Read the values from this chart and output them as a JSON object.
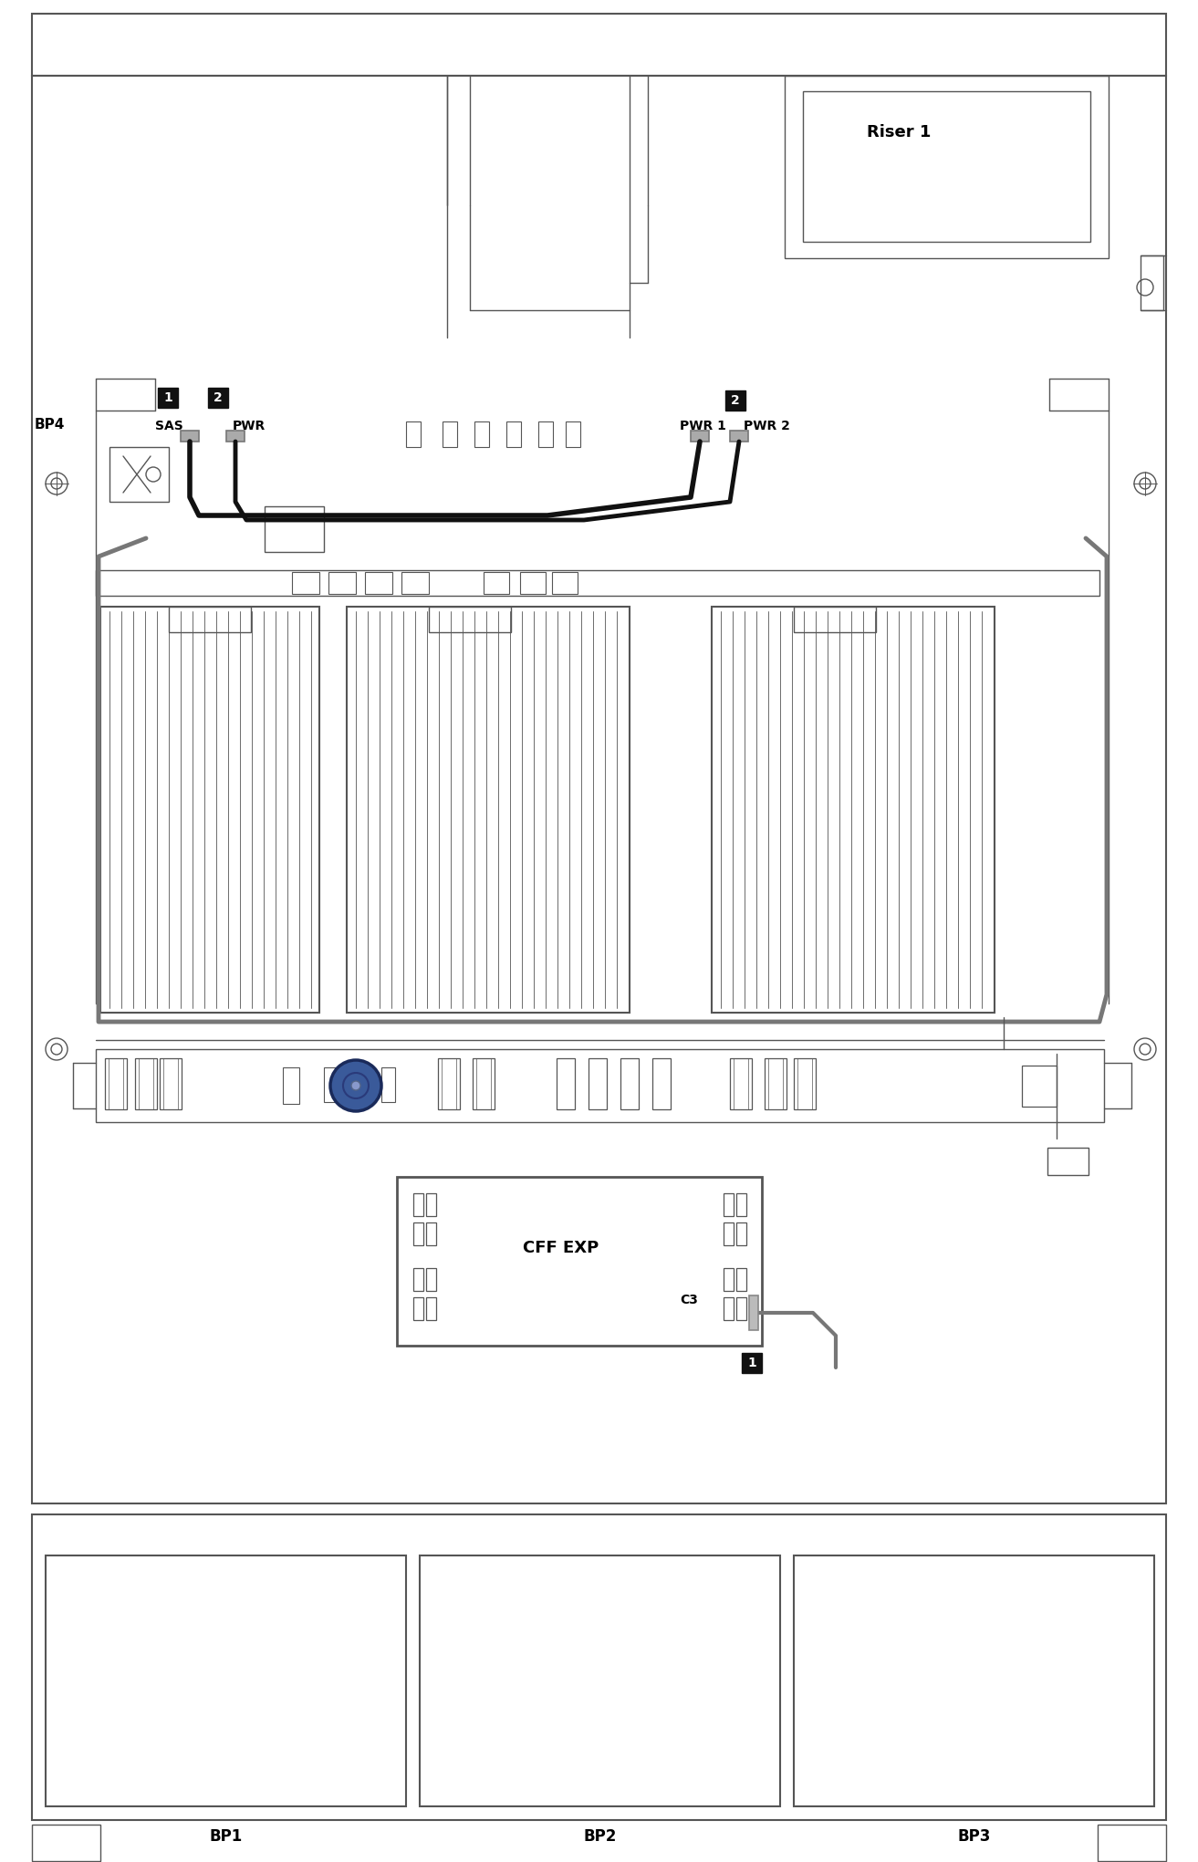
{
  "fig_width": 13.13,
  "fig_height": 20.41,
  "bg_color": "#ffffff",
  "lc": "#555555",
  "lc2": "#333333",
  "cable_black": "#111111",
  "cable_gray": "#888888",
  "labels": {
    "riser1": "Riser 1",
    "bp4": "BP4",
    "sas": "SAS",
    "pwr": "PWR",
    "pwr1": "PWR 1",
    "pwr2": "PWR 2",
    "cff_exp": "CFF EXP",
    "c3": "C3",
    "bp1": "BP1",
    "bp2": "BP2",
    "bp3": "BP3"
  }
}
